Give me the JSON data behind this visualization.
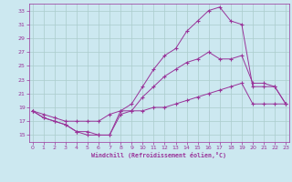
{
  "xlabel": "Windchill (Refroidissement éolien,°C)",
  "bg_color": "#cce8f0",
  "grid_color": "#aacccc",
  "line_color": "#993399",
  "x_ticks": [
    0,
    1,
    2,
    3,
    4,
    5,
    6,
    7,
    8,
    9,
    10,
    11,
    12,
    13,
    14,
    15,
    16,
    17,
    18,
    19,
    20,
    21,
    22,
    23
  ],
  "y_ticks": [
    15,
    17,
    19,
    21,
    23,
    25,
    27,
    29,
    31,
    33
  ],
  "ylim": [
    14.0,
    34.0
  ],
  "xlim": [
    -0.3,
    23.3
  ],
  "line1_x": [
    0,
    1,
    2,
    3,
    4,
    5,
    6,
    7,
    8,
    9,
    10,
    11,
    12,
    13,
    14,
    15,
    16,
    17,
    18,
    19,
    20,
    21,
    22,
    23
  ],
  "line1_y": [
    18.5,
    17.5,
    17.0,
    16.5,
    15.5,
    15.0,
    15.0,
    15.0,
    18.0,
    18.5,
    20.5,
    22.0,
    23.5,
    24.5,
    25.5,
    26.0,
    27.0,
    26.0,
    26.0,
    26.5,
    22.5,
    22.5,
    22.0,
    19.5
  ],
  "line2_x": [
    0,
    1,
    2,
    3,
    4,
    5,
    6,
    7,
    8,
    9,
    10,
    11,
    12,
    13,
    14,
    15,
    16,
    17,
    18,
    19,
    20,
    21,
    22,
    23
  ],
  "line2_y": [
    18.5,
    17.5,
    17.0,
    16.5,
    15.5,
    15.5,
    15.0,
    15.0,
    18.5,
    19.5,
    22.0,
    24.5,
    26.5,
    27.5,
    30.0,
    31.5,
    33.0,
    33.5,
    31.5,
    31.0,
    22.0,
    22.0,
    22.0,
    19.5
  ],
  "line3_x": [
    0,
    1,
    2,
    3,
    4,
    5,
    6,
    7,
    8,
    9,
    10,
    11,
    12,
    13,
    14,
    15,
    16,
    17,
    18,
    19,
    20,
    21,
    22,
    23
  ],
  "line3_y": [
    18.5,
    18.0,
    17.5,
    17.0,
    17.0,
    17.0,
    17.0,
    18.0,
    18.5,
    18.5,
    18.5,
    19.0,
    19.0,
    19.5,
    20.0,
    20.5,
    21.0,
    21.5,
    22.0,
    22.5,
    19.5,
    19.5,
    19.5,
    19.5
  ]
}
